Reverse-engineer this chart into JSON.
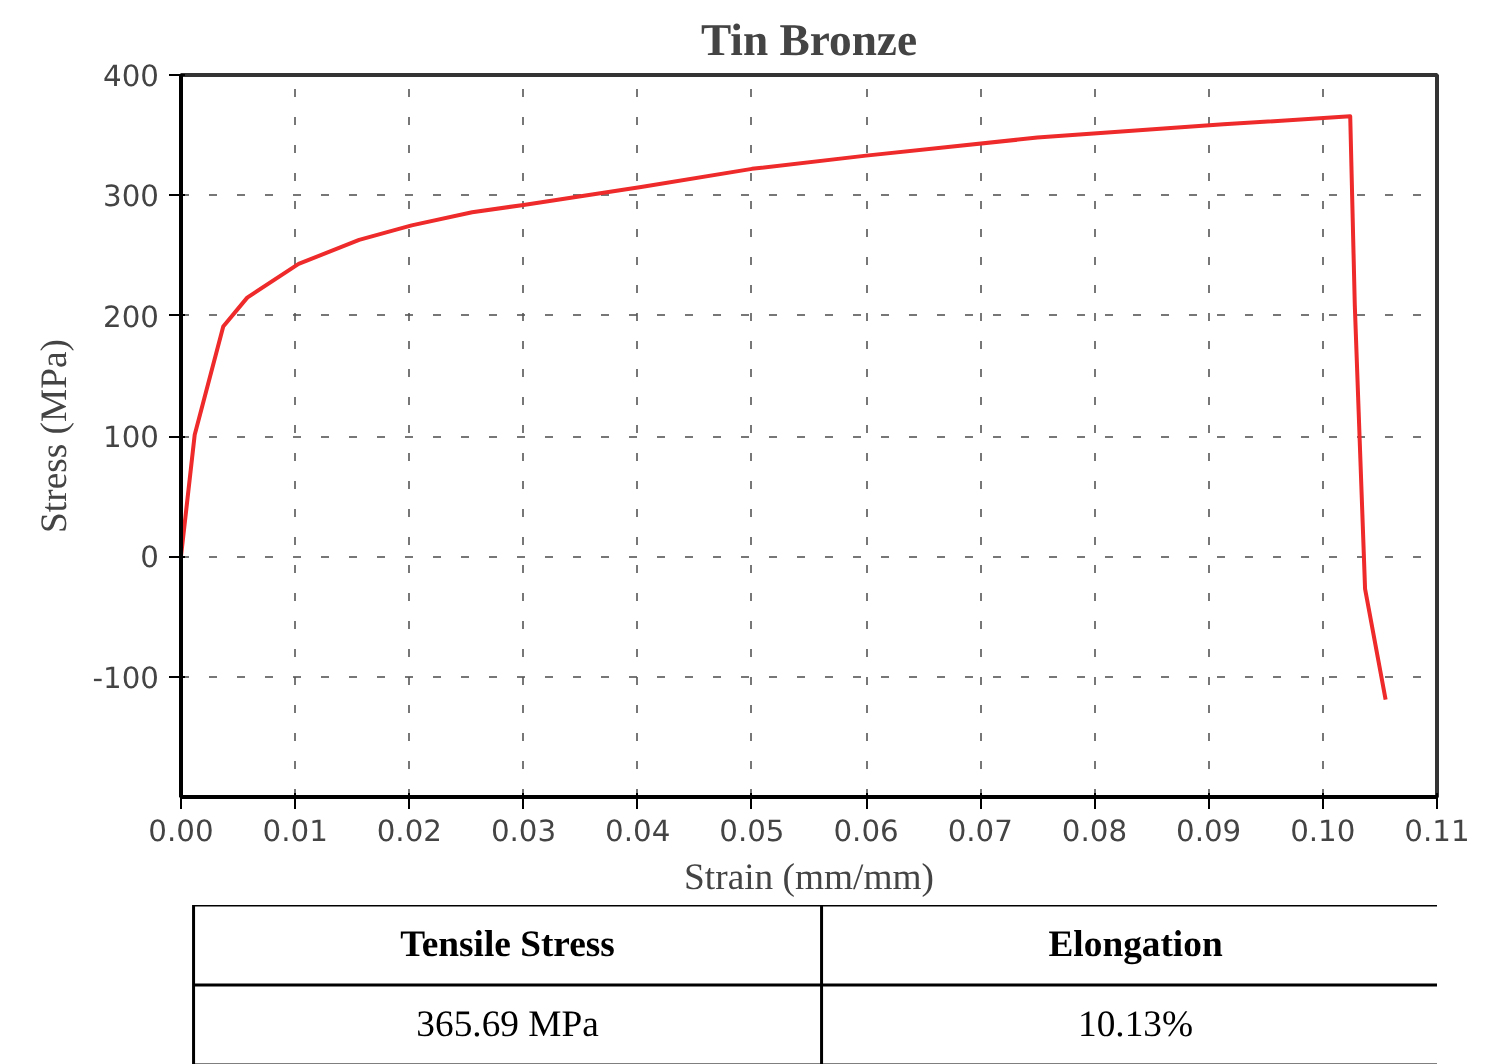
{
  "chart_data": {
    "type": "line",
    "title": "Tin Bronze",
    "xlabel": "Strain (mm/mm)",
    "ylabel": "Stress (MPa)",
    "x": [
      0,
      0.0012,
      0.0037,
      0.0058,
      0.0103,
      0.0156,
      0.0202,
      0.0255,
      0.03,
      0.0403,
      0.05,
      0.06,
      0.075,
      0.0913,
      0.1024,
      0.1028,
      0.1037,
      0.1055
    ],
    "series": [
      {
        "color": "#ee2a2a",
        "values": [
          0,
          101,
          191,
          215,
          243,
          263,
          275,
          286,
          292,
          307,
          322,
          333,
          348,
          359,
          365.69,
          209,
          -27,
          -119
        ]
      }
    ],
    "xlim": [
      0,
      0.11
    ],
    "ylim": [
      -200,
      400
    ],
    "xticks": [
      {
        "value": 0,
        "label": "0.00"
      },
      0.01,
      0.02,
      0.03,
      0.04,
      0.05,
      0.06,
      0.07,
      0.08,
      0.09,
      {
        "value": 0.1,
        "label": "0.10"
      },
      0.11
    ],
    "yticks": [
      -100,
      0,
      100,
      200,
      300,
      400
    ],
    "grid": true,
    "line_style": "solid",
    "annotations": [
      "Tensile Stress",
      "Elongation",
      "365.69 MPa",
      "10.13%"
    ]
  }
}
